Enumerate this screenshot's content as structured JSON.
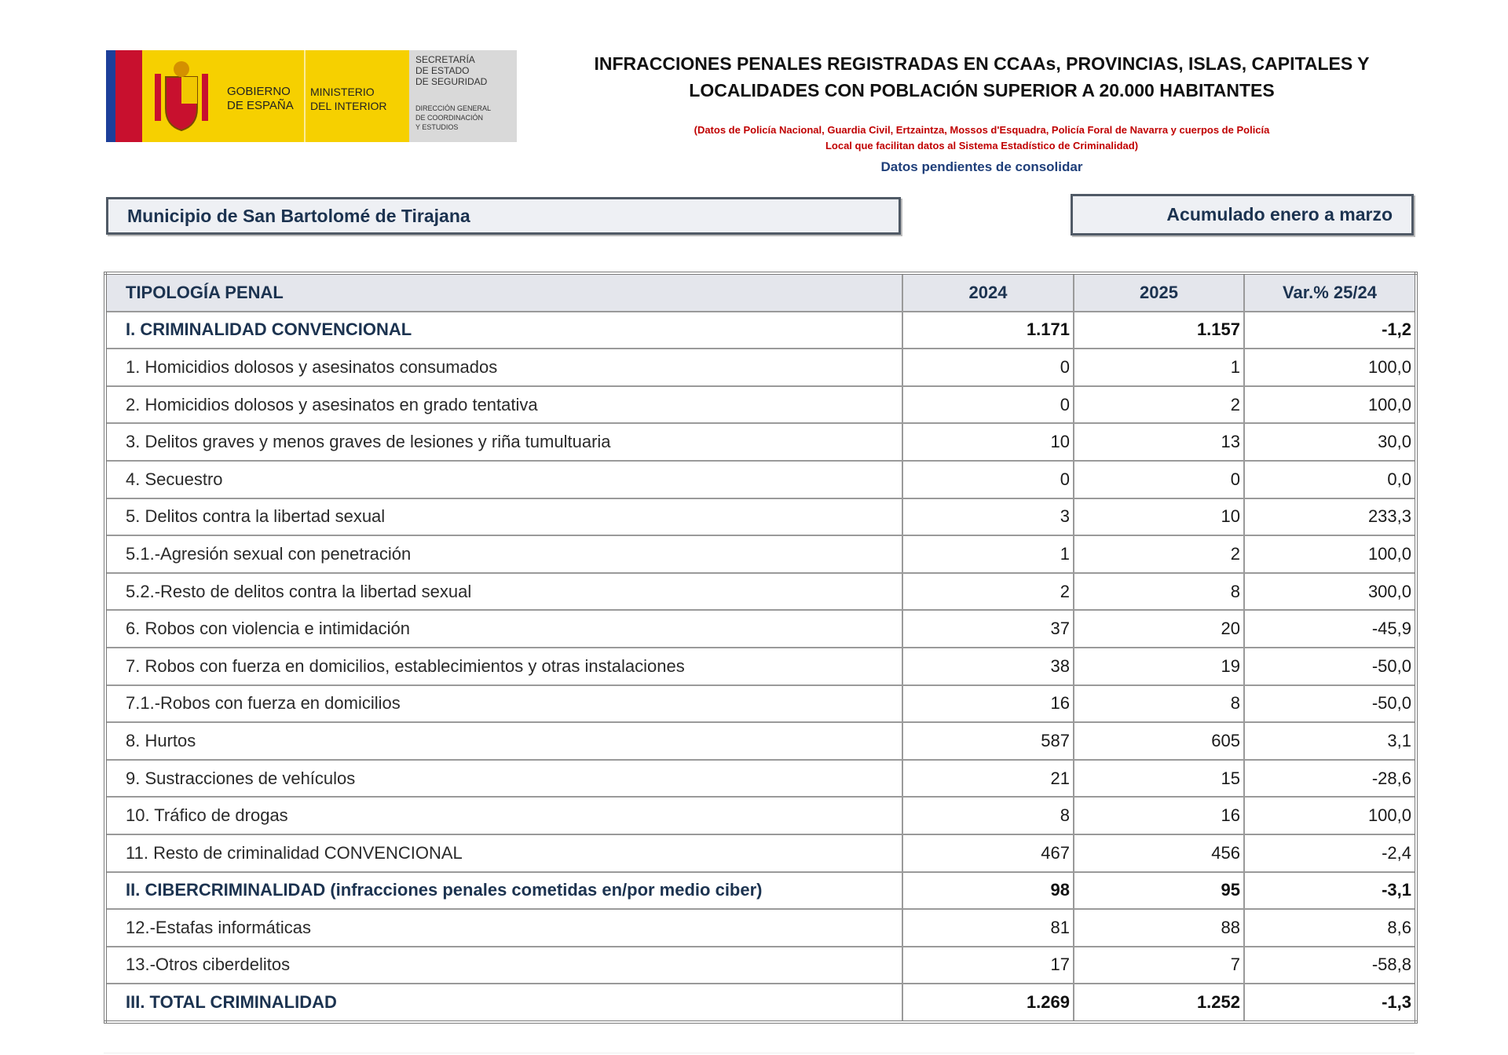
{
  "header": {
    "logo": {
      "gobierno": [
        "GOBIERNO",
        "DE ESPAÑA"
      ],
      "ministerio": [
        "MINISTERIO",
        "DEL INTERIOR"
      ],
      "secretaria": [
        "SECRETARÍA",
        "DE ESTADO",
        "DE SEGURIDAD"
      ],
      "direccion": [
        "DIRECCIÓN GENERAL",
        "DE COORDINACIÓN",
        "Y ESTUDIOS"
      ]
    },
    "title": [
      "INFRACCIONES PENALES REGISTRADAS EN CCAAs, PROVINCIAS, ISLAS, CAPITALES Y",
      "LOCALIDADES CON POBLACIÓN SUPERIOR A 20.000 HABITANTES"
    ],
    "note": [
      "(Datos de Policía Nacional, Guardia Civil, Ertzaintza, Mossos d'Esquadra, Policía Foral de Navarra y cuerpos de Policía",
      "Local que facilitan datos al Sistema Estadístico de Criminalidad)"
    ],
    "status": "Datos pendientes de consolidar"
  },
  "municipality": "Municipio de San Bartolomé de Tirajana",
  "period": "Acumulado enero a marzo",
  "table": {
    "columns": [
      "TIPOLOGÍA PENAL",
      "2024",
      "2025",
      "Var.% 25/24"
    ],
    "rows": [
      [
        "I. CRIMINALIDAD CONVENCIONAL",
        "1.171",
        "1.157",
        "-1,2"
      ],
      [
        "1. Homicidios dolosos y asesinatos consumados",
        "0",
        "1",
        "100,0"
      ],
      [
        "2. Homicidios dolosos y asesinatos en grado tentativa",
        "0",
        "2",
        "100,0"
      ],
      [
        "3. Delitos graves y menos graves de lesiones y riña tumultuaria",
        "10",
        "13",
        "30,0"
      ],
      [
        "4. Secuestro",
        "0",
        "0",
        "0,0"
      ],
      [
        "5. Delitos contra la libertad sexual",
        "3",
        "10",
        "233,3"
      ],
      [
        "5.1.-Agresión sexual con penetración",
        "1",
        "2",
        "100,0"
      ],
      [
        "5.2.-Resto de delitos contra la libertad sexual",
        "2",
        "8",
        "300,0"
      ],
      [
        "6. Robos con violencia e intimidación",
        "37",
        "20",
        "-45,9"
      ],
      [
        "7. Robos con fuerza en domicilios, establecimientos y otras instalaciones",
        "38",
        "19",
        "-50,0"
      ],
      [
        "7.1.-Robos con fuerza en domicilios",
        "16",
        "8",
        "-50,0"
      ],
      [
        "8. Hurtos",
        "587",
        "605",
        "3,1"
      ],
      [
        "9. Sustracciones de vehículos",
        "21",
        "15",
        "-28,6"
      ],
      [
        "10. Tráfico de drogas",
        "8",
        "16",
        "100,0"
      ],
      [
        "11. Resto de criminalidad CONVENCIONAL",
        "467",
        "456",
        "-2,4"
      ],
      [
        "II. CIBERCRIMINALIDAD (infracciones penales cometidas en/por medio ciber)",
        "98",
        "95",
        "-3,1"
      ],
      [
        "12.-Estafas informáticas",
        "81",
        "88",
        "8,6"
      ],
      [
        "13.-Otros ciberdelitos",
        "17",
        "7",
        "-58,8"
      ],
      [
        "III. TOTAL CRIMINALIDAD",
        "1.269",
        "1.252",
        "-1,3"
      ]
    ]
  }
}
